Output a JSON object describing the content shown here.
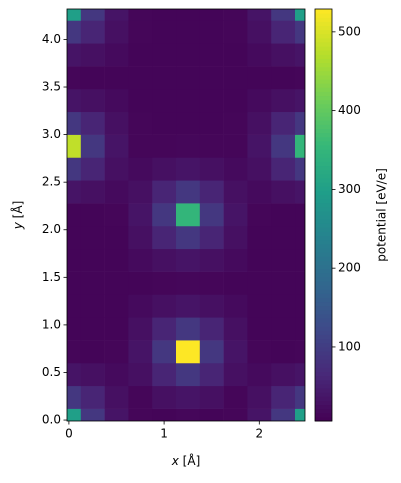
{
  "chart_data": {
    "type": "heatmap",
    "xlabel": {
      "symbol": "x",
      "unit": "[Å]"
    },
    "ylabel": {
      "symbol": "y",
      "unit": "[Å]"
    },
    "colorbar_label": "potential [eV/e]",
    "colormap": "viridis",
    "x": [
      0,
      0.25,
      0.5,
      0.75,
      1,
      1.25,
      1.5,
      1.75,
      2,
      2.25,
      2.5
    ],
    "y": [
      0,
      0.24,
      0.48,
      0.72,
      0.96,
      1.2,
      1.44,
      1.68,
      1.92,
      2.16,
      2.4,
      2.64,
      2.88,
      3.12,
      3.36,
      3.6,
      3.84,
      4.08,
      4.32
    ],
    "values": [
      [
        300,
        90,
        35,
        14,
        12,
        15,
        12,
        14,
        35,
        90,
        300
      ],
      [
        90,
        60,
        28,
        14,
        28,
        35,
        28,
        14,
        28,
        60,
        90
      ],
      [
        35,
        28,
        20,
        28,
        60,
        90,
        60,
        28,
        20,
        28,
        35
      ],
      [
        14,
        12,
        14,
        35,
        90,
        529,
        90,
        35,
        14,
        12,
        14
      ],
      [
        12,
        12,
        12,
        28,
        60,
        90,
        60,
        28,
        12,
        12,
        12
      ],
      [
        12,
        12,
        12,
        20,
        28,
        35,
        28,
        20,
        12,
        12,
        12
      ],
      [
        12,
        12,
        12,
        12,
        14,
        15,
        14,
        12,
        12,
        12,
        12
      ],
      [
        12,
        12,
        12,
        20,
        28,
        35,
        28,
        20,
        12,
        12,
        12
      ],
      [
        12,
        12,
        12,
        28,
        60,
        90,
        60,
        28,
        12,
        12,
        12
      ],
      [
        12,
        12,
        14,
        35,
        90,
        350,
        90,
        35,
        14,
        12,
        12
      ],
      [
        35,
        28,
        20,
        28,
        60,
        90,
        60,
        28,
        20,
        28,
        35
      ],
      [
        90,
        60,
        28,
        20,
        28,
        35,
        28,
        20,
        28,
        60,
        90
      ],
      [
        480,
        90,
        35,
        14,
        14,
        15,
        14,
        14,
        35,
        90,
        350
      ],
      [
        90,
        60,
        28,
        14,
        12,
        12,
        12,
        14,
        28,
        60,
        90
      ],
      [
        35,
        28,
        20,
        12,
        12,
        12,
        12,
        12,
        20,
        28,
        35
      ],
      [
        14,
        12,
        12,
        12,
        12,
        12,
        12,
        12,
        12,
        12,
        14
      ],
      [
        35,
        28,
        20,
        12,
        12,
        12,
        12,
        12,
        20,
        28,
        35
      ],
      [
        90,
        60,
        28,
        14,
        12,
        12,
        12,
        14,
        28,
        60,
        90
      ],
      [
        300,
        90,
        35,
        14,
        12,
        12,
        12,
        14,
        35,
        90,
        300
      ]
    ],
    "xlim": [
      -0.02,
      2.48
    ],
    "ylim": [
      -0.01,
      4.32
    ],
    "xticks": [
      0,
      1,
      2
    ],
    "yticks": [
      {
        "value": 0,
        "label": "0.0"
      },
      0.5,
      {
        "value": 1,
        "label": "1.0"
      },
      1.5,
      {
        "value": 2,
        "label": "2.0"
      },
      2.5,
      {
        "value": 3,
        "label": "3.0"
      },
      3.5,
      {
        "value": 4,
        "label": "4.0"
      }
    ],
    "clim": [
      6,
      529
    ],
    "cticks": [
      100,
      200,
      300,
      400,
      500
    ]
  }
}
